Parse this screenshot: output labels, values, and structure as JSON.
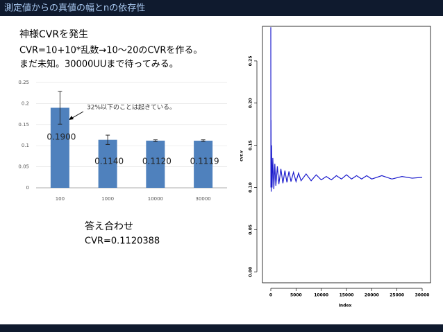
{
  "header": {
    "title": "測定値からの真値の幅とnの依存性"
  },
  "text": {
    "lines": [
      "神様CVRを発生",
      "CVR=10+10*乱数→10〜20のCVRを作る。",
      "まだ未知。30000UUまで待ってみる。"
    ],
    "answer_title": "答え合わせ",
    "answer_value": "CVR=0.1120388"
  },
  "chart_data": [
    {
      "type": "bar",
      "categories": [
        "100",
        "1000",
        "10000",
        "30000"
      ],
      "values": [
        0.19,
        0.114,
        0.112,
        0.1119
      ],
      "value_labels": [
        "0.1900",
        "0.1140",
        "0.1120",
        "0.1119"
      ],
      "errors": [
        0.039,
        0.011,
        0.002,
        0.002
      ],
      "color": "#4f81bd",
      "ylim": [
        0,
        0.25
      ],
      "yticks": [
        0,
        0.05,
        0.1,
        0.15,
        0.2,
        0.25
      ],
      "grid": true,
      "annotation": "32%以下のことは起きている。"
    },
    {
      "type": "line",
      "xlabel": "Index",
      "ylabel": "cvr.v",
      "x": [
        1,
        20,
        40,
        80,
        150,
        250,
        400,
        600,
        800,
        1000,
        1300,
        1600,
        2000,
        2400,
        2800,
        3200,
        3600,
        4000,
        4500,
        5000,
        5500,
        6000,
        7000,
        8000,
        9000,
        10000,
        11000,
        12000,
        13000,
        14000,
        15000,
        16000,
        17000,
        18000,
        19000,
        20000,
        22000,
        24000,
        26000,
        28000,
        30000
      ],
      "series": [
        {
          "color": "#1a1acc",
          "values": [
            0.29,
            0.1,
            0.18,
            0.095,
            0.15,
            0.1,
            0.135,
            0.098,
            0.128,
            0.102,
            0.125,
            0.104,
            0.122,
            0.105,
            0.12,
            0.106,
            0.119,
            0.107,
            0.118,
            0.107,
            0.117,
            0.108,
            0.116,
            0.108,
            0.115,
            0.109,
            0.113,
            0.109,
            0.114,
            0.11,
            0.115,
            0.11,
            0.114,
            0.11,
            0.114,
            0.11,
            0.114,
            0.11,
            0.113,
            0.111,
            0.112
          ]
        }
      ],
      "xlim": [
        -1650,
        31650
      ],
      "ylim": [
        -0.013,
        0.291
      ],
      "xticks": [
        0,
        5000,
        10000,
        15000,
        20000,
        25000,
        30000
      ],
      "yticks": [
        {
          "value": 0,
          "label": "0.00"
        },
        {
          "value": 0.05,
          "label": "0.05"
        },
        {
          "value": 0.1,
          "label": "0.10"
        },
        {
          "value": 0.15,
          "label": "0.15"
        },
        {
          "value": 0.2,
          "label": "0.20"
        },
        {
          "value": 0.25,
          "label": "0.25"
        }
      ]
    }
  ]
}
